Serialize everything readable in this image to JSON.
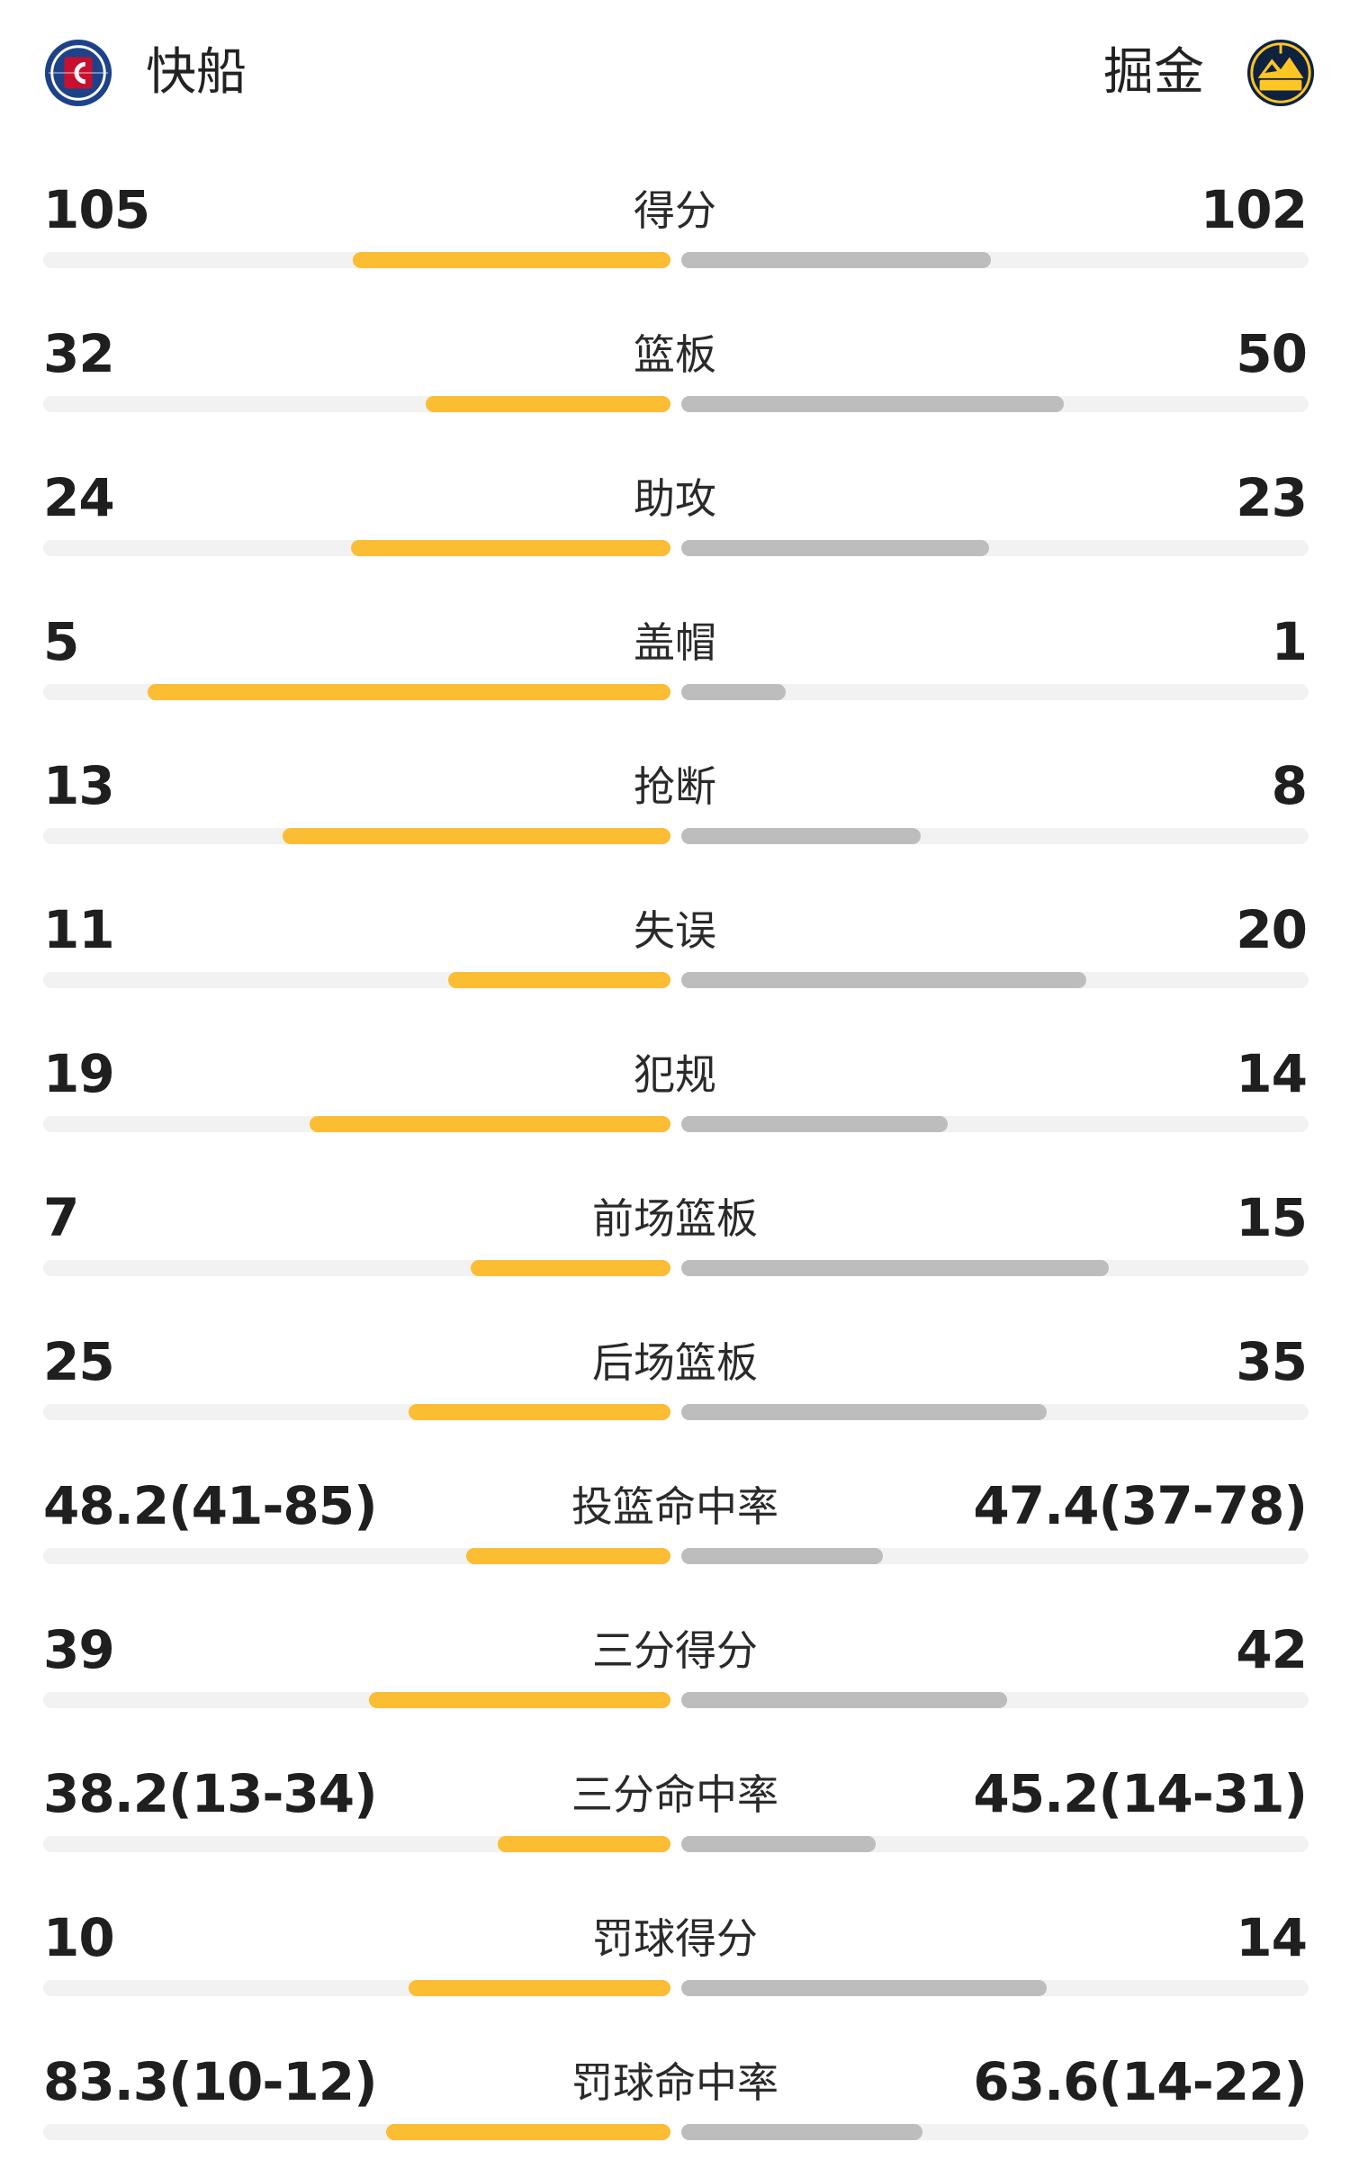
{
  "header": {
    "home_team": {
      "name": "快船",
      "logo_icon": "clippers-logo-icon"
    },
    "away_team": {
      "name": "掘金",
      "logo_icon": "nuggets-logo-icon"
    }
  },
  "colors": {
    "home_bar": "#fbbd33",
    "away_bar": "#bdbdbd",
    "track": "#f2f2f2"
  },
  "stats": [
    {
      "label": "得分",
      "home": "105",
      "away": "102",
      "home_fraction": 0.506,
      "away_fraction": 0.494
    },
    {
      "label": "篮板",
      "home": "32",
      "away": "50",
      "home_fraction": 0.39,
      "away_fraction": 0.61
    },
    {
      "label": "助攻",
      "home": "24",
      "away": "23",
      "home_fraction": 0.51,
      "away_fraction": 0.49
    },
    {
      "label": "盖帽",
      "home": "5",
      "away": "1",
      "home_fraction": 0.833,
      "away_fraction": 0.167
    },
    {
      "label": "抢断",
      "home": "13",
      "away": "8",
      "home_fraction": 0.619,
      "away_fraction": 0.381
    },
    {
      "label": "失误",
      "home": "11",
      "away": "20",
      "home_fraction": 0.355,
      "away_fraction": 0.645
    },
    {
      "label": "犯规",
      "home": "19",
      "away": "14",
      "home_fraction": 0.576,
      "away_fraction": 0.424
    },
    {
      "label": "前场篮板",
      "home": "7",
      "away": "15",
      "home_fraction": 0.318,
      "away_fraction": 0.682
    },
    {
      "label": "后场篮板",
      "home": "25",
      "away": "35",
      "home_fraction": 0.417,
      "away_fraction": 0.583
    },
    {
      "label": "投篮命中率",
      "home": "48.2(41-85)",
      "away": "47.4(37-78)",
      "home_fraction": 0.326,
      "away_fraction": 0.322
    },
    {
      "label": "三分得分",
      "home": "39",
      "away": "42",
      "home_fraction": 0.481,
      "away_fraction": 0.519
    },
    {
      "label": "三分命中率",
      "home": "38.2(13-34)",
      "away": "45.2(14-31)",
      "home_fraction": 0.276,
      "away_fraction": 0.31
    },
    {
      "label": "罚球得分",
      "home": "10",
      "away": "14",
      "home_fraction": 0.417,
      "away_fraction": 0.583
    },
    {
      "label": "罚球命中率",
      "home": "83.3(10-12)",
      "away": "63.6(14-22)",
      "home_fraction": 0.454,
      "away_fraction": 0.385
    }
  ]
}
